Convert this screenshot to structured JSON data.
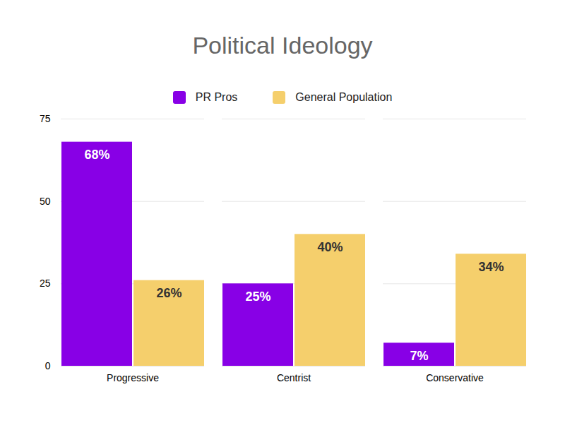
{
  "chart_data": {
    "type": "bar",
    "title": "Political Ideology",
    "categories": [
      "Progressive",
      "Centrist",
      "Conservative"
    ],
    "series": [
      {
        "name": "PR Pros",
        "color": "#8800e6",
        "values": [
          68,
          25,
          7
        ],
        "value_labels": [
          "68%",
          "25%",
          "7%"
        ]
      },
      {
        "name": "General Population",
        "color": "#f5cf6c",
        "values": [
          26,
          40,
          34
        ],
        "value_labels": [
          "26%",
          "40%",
          "34%"
        ]
      }
    ],
    "ylim": [
      0,
      75
    ],
    "yticks": [
      0,
      25,
      50,
      75
    ],
    "grid": true,
    "legend": "top",
    "data_labels": true
  }
}
